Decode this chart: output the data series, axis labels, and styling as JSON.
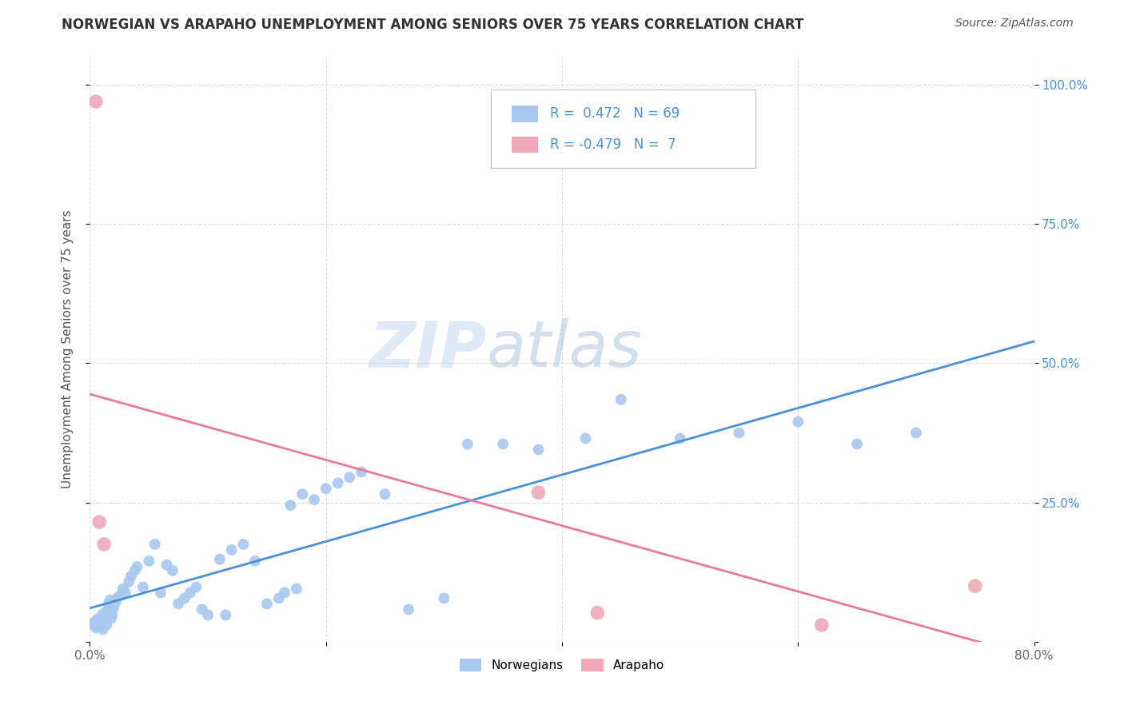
{
  "title": "NORWEGIAN VS ARAPAHO UNEMPLOYMENT AMONG SENIORS OVER 75 YEARS CORRELATION CHART",
  "source": "Source: ZipAtlas.com",
  "ylabel": "Unemployment Among Seniors over 75 years",
  "xlim": [
    0.0,
    0.8
  ],
  "ylim": [
    0.0,
    1.05
  ],
  "xticks": [
    0.0,
    0.2,
    0.4,
    0.6,
    0.8
  ],
  "xticklabels": [
    "0.0%",
    "",
    "",
    "",
    "80.0%"
  ],
  "ytick_positions": [
    0.0,
    0.25,
    0.5,
    0.75,
    1.0
  ],
  "ytick_labels_right": [
    "",
    "25.0%",
    "50.0%",
    "75.0%",
    "100.0%"
  ],
  "norwegian_R": 0.472,
  "norwegian_N": 69,
  "arapaho_R": -0.479,
  "arapaho_N": 7,
  "norwegian_color": "#a8c8f0",
  "arapaho_color": "#f0a8b8",
  "norwegian_line_color": "#4a90d9",
  "arapaho_line_color": "#e87a9a",
  "trend_dashed_color": "#b0b0b0",
  "watermark_zip": "ZIP",
  "watermark_atlas": "atlas",
  "watermark_color_zip": "#c8d8f0",
  "watermark_color_atlas": "#a0b8d8",
  "norwegian_x": [
    0.003,
    0.004,
    0.005,
    0.006,
    0.007,
    0.008,
    0.009,
    0.01,
    0.011,
    0.012,
    0.013,
    0.014,
    0.015,
    0.016,
    0.017,
    0.018,
    0.019,
    0.02,
    0.021,
    0.022,
    0.023,
    0.025,
    0.028,
    0.03,
    0.033,
    0.035,
    0.038,
    0.04,
    0.045,
    0.05,
    0.055,
    0.06,
    0.065,
    0.07,
    0.075,
    0.08,
    0.085,
    0.09,
    0.095,
    0.1,
    0.11,
    0.115,
    0.12,
    0.13,
    0.14,
    0.15,
    0.16,
    0.165,
    0.17,
    0.175,
    0.18,
    0.19,
    0.2,
    0.21,
    0.22,
    0.23,
    0.25,
    0.27,
    0.3,
    0.32,
    0.35,
    0.38,
    0.42,
    0.45,
    0.5,
    0.55,
    0.6,
    0.65,
    0.7
  ],
  "norwegian_y": [
    0.03,
    0.035,
    0.025,
    0.04,
    0.038,
    0.028,
    0.032,
    0.048,
    0.022,
    0.042,
    0.052,
    0.03,
    0.058,
    0.068,
    0.075,
    0.042,
    0.048,
    0.062,
    0.068,
    0.072,
    0.078,
    0.082,
    0.095,
    0.088,
    0.108,
    0.118,
    0.128,
    0.135,
    0.098,
    0.145,
    0.175,
    0.088,
    0.138,
    0.128,
    0.068,
    0.078,
    0.088,
    0.098,
    0.058,
    0.048,
    0.148,
    0.048,
    0.165,
    0.175,
    0.145,
    0.068,
    0.078,
    0.088,
    0.245,
    0.095,
    0.265,
    0.255,
    0.275,
    0.285,
    0.295,
    0.305,
    0.265,
    0.058,
    0.078,
    0.355,
    0.355,
    0.345,
    0.365,
    0.435,
    0.365,
    0.375,
    0.395,
    0.355,
    0.375
  ],
  "arapaho_x": [
    0.005,
    0.008,
    0.012,
    0.38,
    0.43,
    0.62,
    0.75
  ],
  "arapaho_y": [
    0.97,
    0.215,
    0.175,
    0.268,
    0.052,
    0.03,
    0.1
  ],
  "nor_line_x": [
    0.0,
    0.8
  ],
  "nor_line_y_intercept": 0.04,
  "nor_line_slope": 0.55,
  "ara_line_x": [
    0.0,
    0.8
  ],
  "ara_line_y_intercept": 0.52,
  "ara_line_slope": -0.65
}
